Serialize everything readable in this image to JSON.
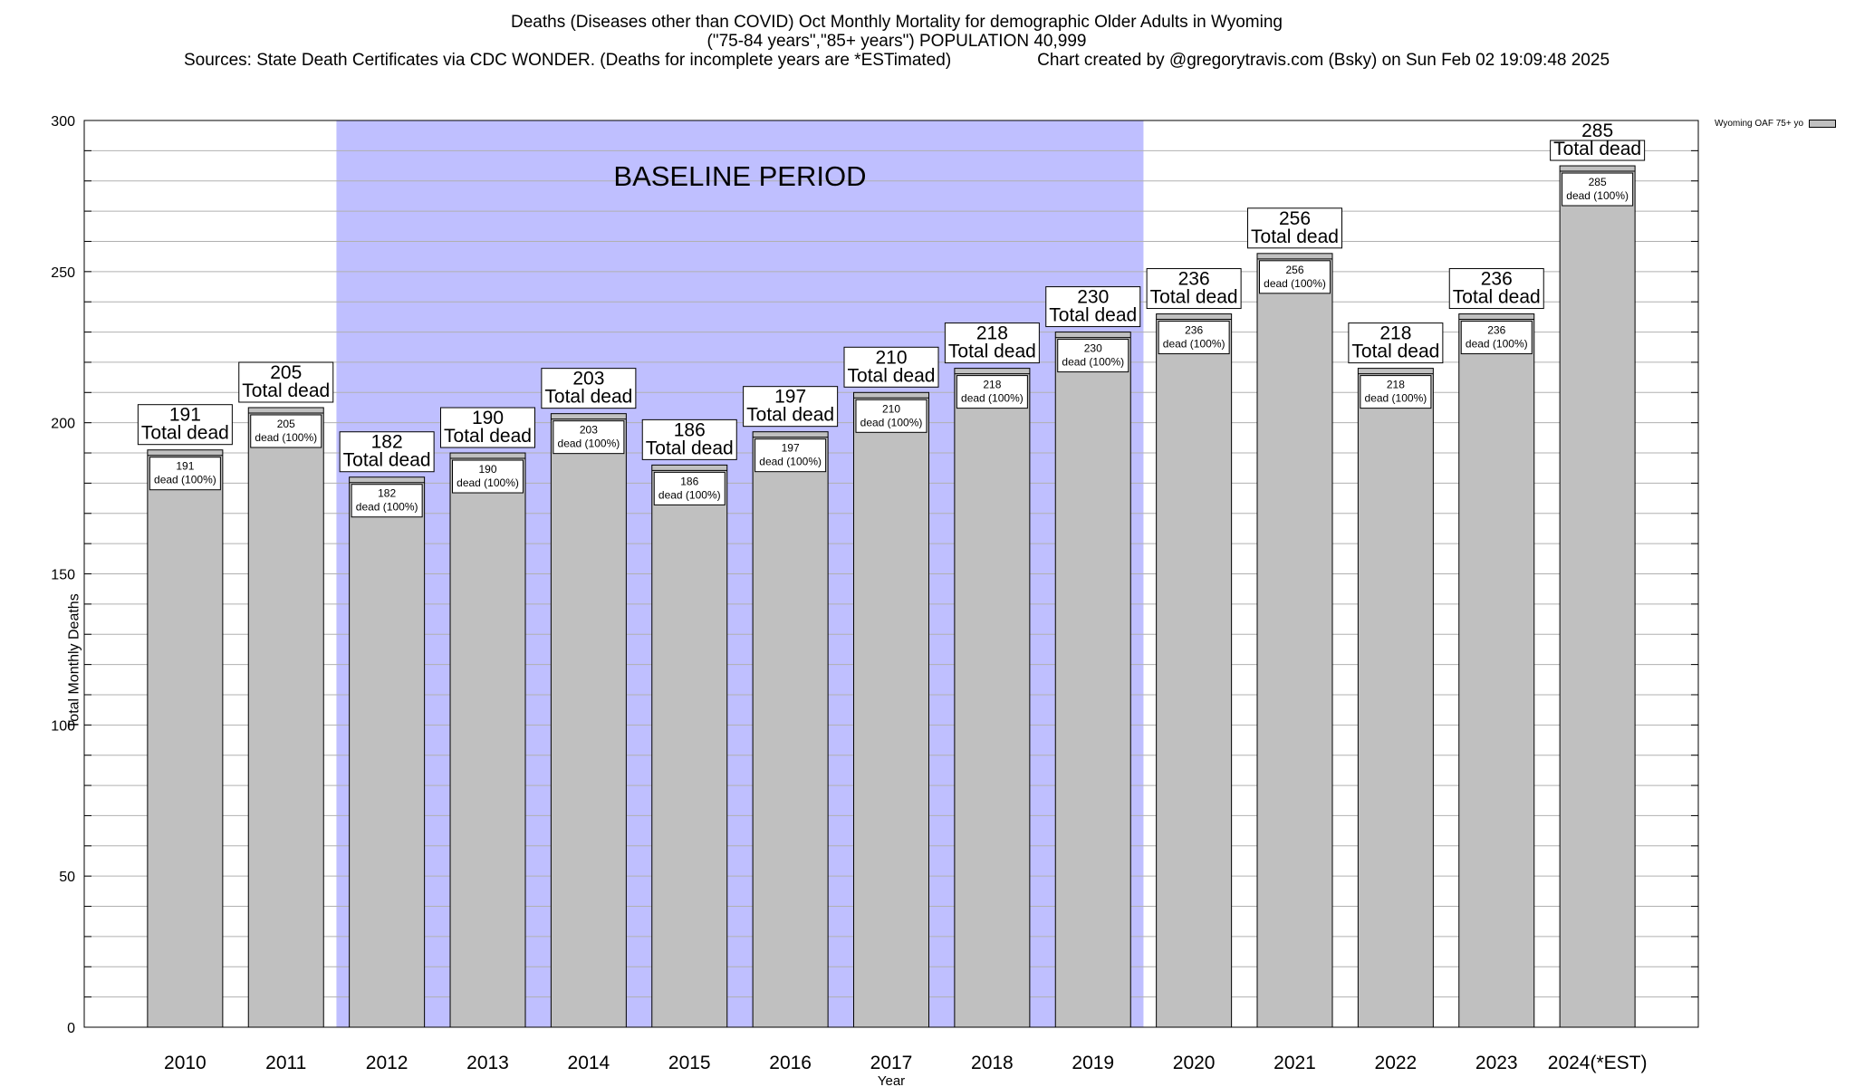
{
  "title": {
    "line1": "Deaths (Diseases other than COVID) Oct Monthly Mortality for demographic Older Adults in Wyoming",
    "line2": "(\"75-84 years\",\"85+ years\") POPULATION 40,999",
    "sources": "Sources: State Death Certificates via CDC WONDER. (Deaths for incomplete years are *ESTimated)",
    "credit": "Chart created by @gregorytravis.com (Bsky) on Sun Feb 02 19:09:48 2025"
  },
  "legend": {
    "label": "Wyoming OAF 75+ yo"
  },
  "colors": {
    "bar": "#c0c0c0",
    "baseline": "#bfbfff",
    "grid": "#b0b0b0"
  },
  "chart_data": {
    "type": "bar",
    "categories": [
      "2010",
      "2011",
      "2012",
      "2013",
      "2014",
      "2015",
      "2016",
      "2017",
      "2018",
      "2019",
      "2020",
      "2021",
      "2022",
      "2023",
      "2024(*EST)"
    ],
    "series": [
      {
        "name": "Wyoming OAF 75+ yo",
        "values": [
          191,
          205,
          182,
          190,
          203,
          186,
          197,
          210,
          218,
          230,
          236,
          256,
          218,
          236,
          285
        ]
      }
    ],
    "xlabel": "Year",
    "ylabel": "Total Monthly Deaths",
    "ylim": [
      0,
      300
    ],
    "yticks": [
      0,
      50,
      100,
      150,
      200,
      250,
      300
    ],
    "grid": true,
    "legend_position": "top-right",
    "baseline": {
      "label": "BASELINE PERIOD",
      "from": "2012",
      "to": "2019"
    },
    "top_label_suffix": "Total dead",
    "inner_label_suffix": "dead (100%)",
    "labels_without_top_box": [
      "2024(*EST)"
    ]
  }
}
